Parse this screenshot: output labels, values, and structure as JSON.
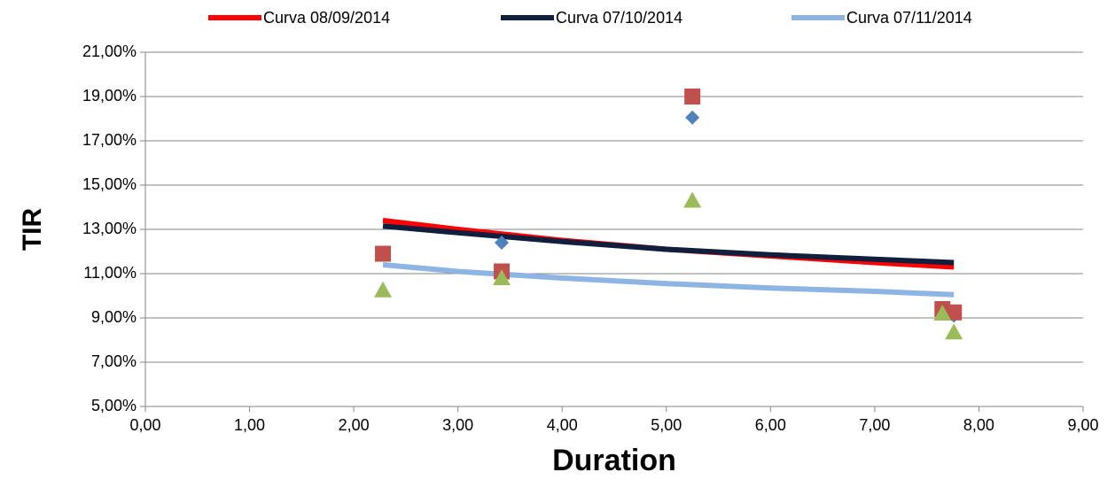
{
  "chart_data": {
    "type": "line",
    "x_label": "Duration",
    "y_label": "TIR",
    "xlim": [
      0,
      9
    ],
    "xticks": [
      {
        "value": 0,
        "label": "0,00"
      },
      {
        "value": 1,
        "label": "1,00"
      },
      {
        "value": 2,
        "label": "2,00"
      },
      {
        "value": 3,
        "label": "3,00"
      },
      {
        "value": 4,
        "label": "4,00"
      },
      {
        "value": 5,
        "label": "5,00"
      },
      {
        "value": 6,
        "label": "6,00"
      },
      {
        "value": 7,
        "label": "7,00"
      },
      {
        "value": 8,
        "label": "8,00"
      },
      {
        "value": 9,
        "label": "9,00"
      }
    ],
    "ylim": [
      5,
      21
    ],
    "yticks": [
      {
        "value": 5,
        "label": "5,00%"
      },
      {
        "value": 7,
        "label": "7,00%"
      },
      {
        "value": 9,
        "label": "9,00%"
      },
      {
        "value": 11,
        "label": "11,00%"
      },
      {
        "value": 13,
        "label": "13,00%"
      },
      {
        "value": 15,
        "label": "15,00%"
      },
      {
        "value": 17,
        "label": "17,00%"
      },
      {
        "value": 19,
        "label": "19,00%"
      },
      {
        "value": 21,
        "label": "21,00%"
      }
    ],
    "grid": true,
    "legend": "top",
    "series": [
      {
        "name": "Curva 08/09/2014",
        "color": "#ff0000",
        "x": [
          2.28,
          3,
          4,
          5,
          6,
          7,
          7.76
        ],
        "values": [
          13.4,
          13.0,
          12.5,
          12.1,
          11.8,
          11.5,
          11.3
        ]
      },
      {
        "name": "Curva 07/10/2014",
        "color": "#0f1f3d",
        "x": [
          2.28,
          3,
          4,
          5,
          6,
          7,
          7.76
        ],
        "values": [
          13.15,
          12.85,
          12.45,
          12.1,
          11.85,
          11.65,
          11.5
        ]
      },
      {
        "name": "Curva 07/11/2014",
        "color": "#8db4e2",
        "x": [
          2.28,
          3,
          4,
          5,
          6,
          7,
          7.76
        ],
        "values": [
          11.4,
          11.1,
          10.8,
          10.55,
          10.35,
          10.2,
          10.05
        ]
      },
      {
        "type": "scatter",
        "marker": "diamond",
        "color": "#4f81bd",
        "x": [
          2.28,
          3.42,
          5.25,
          7.76
        ],
        "values": [
          11.85,
          12.4,
          18.05,
          9.1
        ]
      },
      {
        "type": "scatter",
        "marker": "square",
        "color": "#c0504d",
        "x": [
          2.28,
          3.42,
          5.25,
          7.65,
          7.76
        ],
        "values": [
          11.9,
          11.1,
          19.0,
          9.4,
          9.25
        ]
      },
      {
        "type": "scatter",
        "marker": "triangle",
        "color": "#9bbb59",
        "x": [
          2.28,
          3.42,
          5.25,
          7.65,
          7.76
        ],
        "values": [
          10.25,
          10.8,
          14.3,
          9.2,
          8.35
        ]
      }
    ]
  }
}
